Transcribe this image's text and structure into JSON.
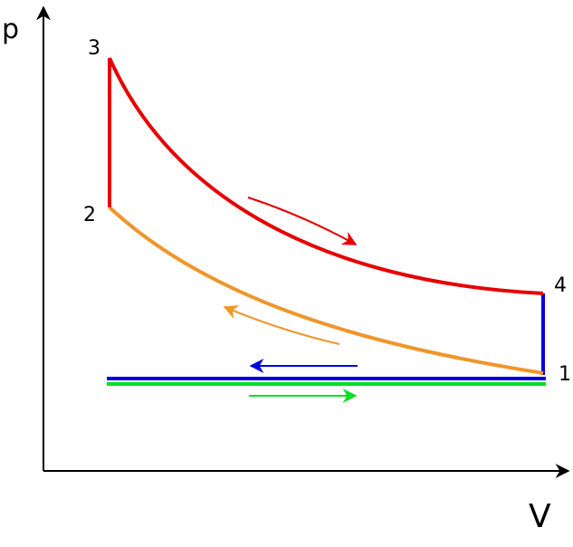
{
  "axes": {
    "y_label": "p",
    "x_label": "V"
  },
  "points": [
    {
      "label": "1"
    },
    {
      "label": "2"
    },
    {
      "label": "3"
    },
    {
      "label": "4"
    }
  ]
}
